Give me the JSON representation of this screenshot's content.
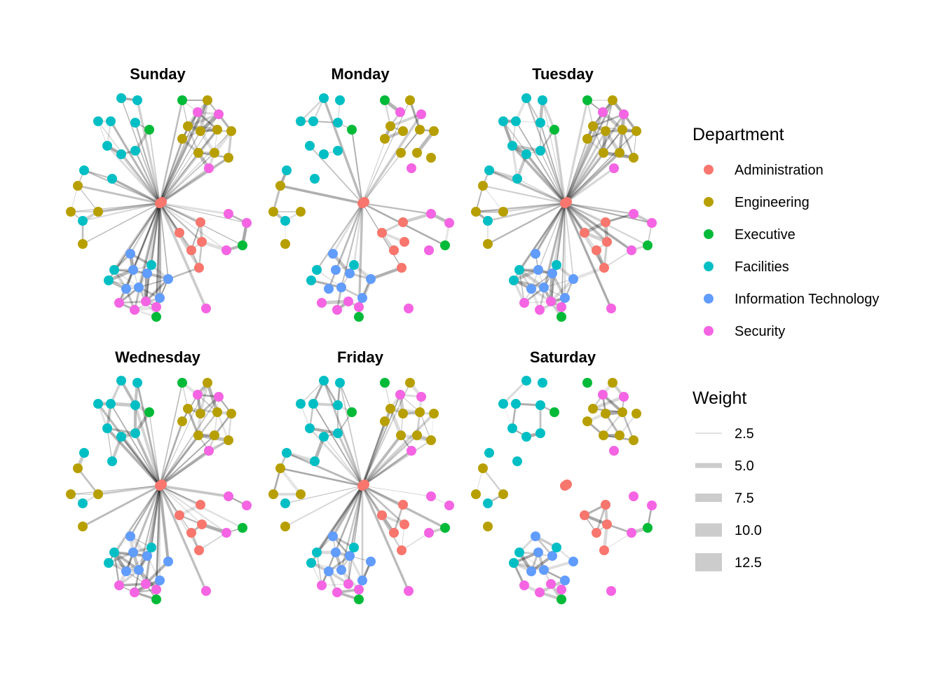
{
  "colors": {
    "Administration": "#F8766D",
    "Engineering": "#B79F00",
    "Executive": "#00BA38",
    "Facilities": "#00BFC4",
    "Information Technology": "#619CFF",
    "Security": "#F564E3",
    "edge": "#000000"
  },
  "legend": {
    "department_title": "Department",
    "departments": [
      "Administration",
      "Engineering",
      "Executive",
      "Facilities",
      "Information Technology",
      "Security"
    ],
    "weight_title": "Weight",
    "weights": [
      "2.5",
      "5.0",
      "7.5",
      "10.0",
      "12.5"
    ]
  },
  "panels": [
    {
      "title": "Sunday",
      "density": 1.0,
      "hub": 1.0
    },
    {
      "title": "Monday",
      "density": 0.45,
      "hub": 0.35
    },
    {
      "title": "Tuesday",
      "density": 1.0,
      "hub": 0.95
    },
    {
      "title": "Wednesday",
      "density": 0.85,
      "hub": 0.85
    },
    {
      "title": "Friday",
      "density": 0.75,
      "hub": 0.7
    },
    {
      "title": "Saturday",
      "density": 0.55,
      "hub": 0.0
    }
  ]
}
